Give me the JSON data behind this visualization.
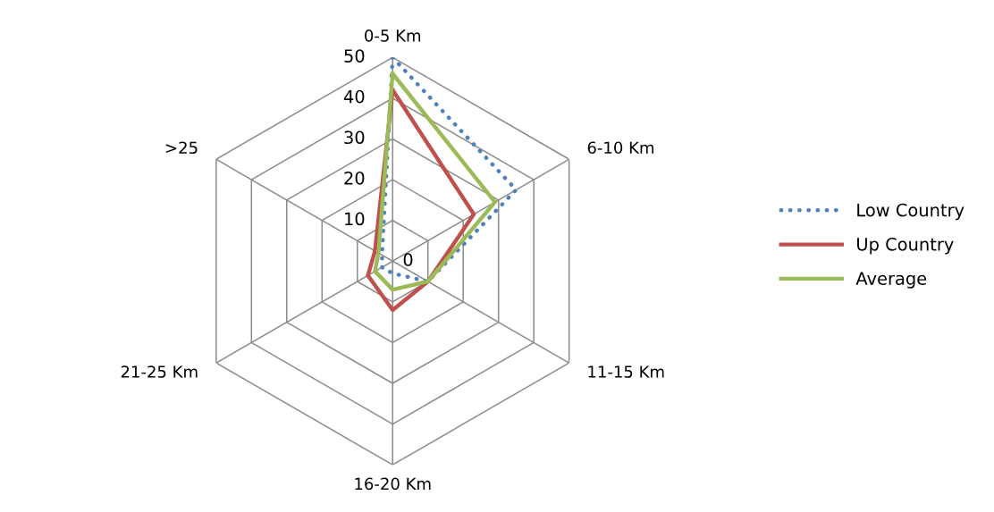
{
  "chart_data": {
    "type": "radar",
    "categories": [
      "0-5 Km",
      "6-10 Km",
      "11-15 Km",
      "16-20 Km",
      "21-25 Km",
      ">25"
    ],
    "ylim": [
      0,
      50
    ],
    "yticks": [
      0,
      10,
      20,
      30,
      40,
      50
    ],
    "grid": true,
    "legend": "right",
    "marker": "none",
    "series": [
      {
        "name": "Low Country",
        "color": "#4f81bd",
        "line_style": "dotted",
        "values": [
          50,
          35,
          10,
          3,
          3,
          3
        ]
      },
      {
        "name": "Up Country",
        "color": "#c0504d",
        "line_style": "solid",
        "values": [
          42,
          23,
          10,
          12,
          7,
          5
        ]
      },
      {
        "name": "Average",
        "color": "#9bbb59",
        "line_style": "solid",
        "values": [
          46,
          29,
          10,
          7,
          5,
          4
        ]
      }
    ]
  }
}
